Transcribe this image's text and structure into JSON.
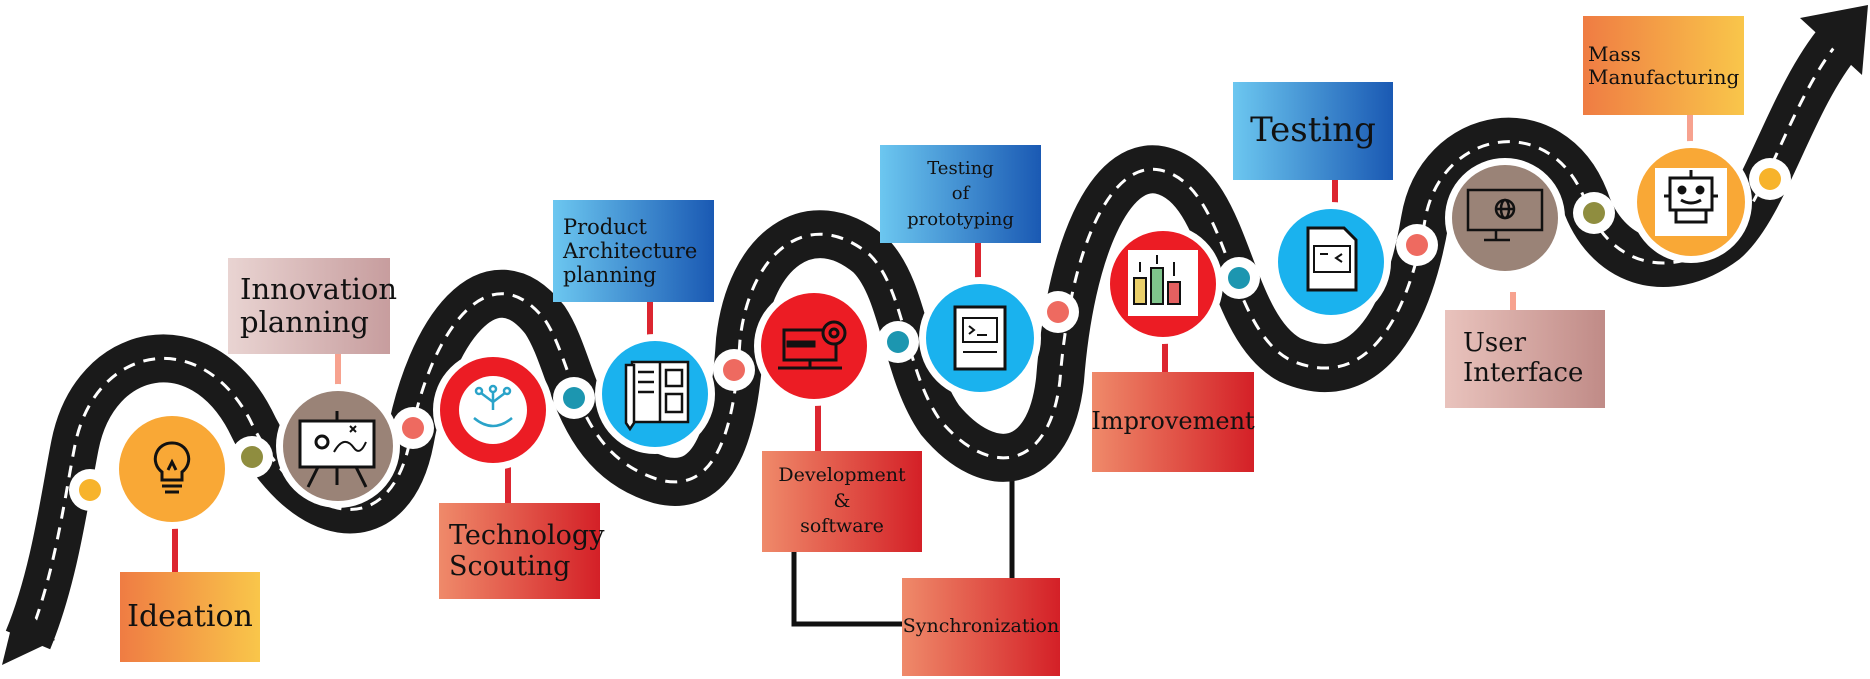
{
  "steps": [
    {
      "id": "ideation",
      "label": "Ideation",
      "icon": "lightbulb-icon",
      "circle_color": "#f9a836",
      "box_colors": [
        "#ef7c43",
        "#f9c64a"
      ]
    },
    {
      "id": "innovation",
      "label_lines": [
        "Innovation",
        "planning"
      ],
      "icon": "whiteboard-icon",
      "circle_color": "#9a8377",
      "box_colors": [
        "#e9d4d2",
        "#c79d9e"
      ]
    },
    {
      "id": "technology",
      "label_lines": [
        "Technology",
        "Scouting"
      ],
      "icon": "network-hand-icon",
      "circle_color": "#ec1c24",
      "box_colors": [
        "#ef8a6a",
        "#d42027"
      ]
    },
    {
      "id": "architecture",
      "label_lines": [
        "Product",
        "Architecture",
        "planning"
      ],
      "icon": "blueprint-icon",
      "circle_color": "#1ab2ee",
      "box_colors": [
        "#6cc7f0",
        "#1a59b3"
      ]
    },
    {
      "id": "development",
      "label_lines": [
        "Development",
        "&",
        "software"
      ],
      "icon": "computer-gear-icon",
      "circle_color": "#ec1c24",
      "box_colors": [
        "#ee8468",
        "#d4232b"
      ]
    },
    {
      "id": "synchronization",
      "label": "Synchronization",
      "box_colors": [
        "#ef8a6a",
        "#d42027"
      ]
    },
    {
      "id": "prototype-testing",
      "label_lines": [
        "Testing",
        "of",
        "prototyping"
      ],
      "icon": "code-document-icon",
      "circle_color": "#1ab2ee",
      "box_colors": [
        "#6cc7f0",
        "#1a59b3"
      ]
    },
    {
      "id": "improvement",
      "label": "Improvement",
      "icon": "bar-chart-icon",
      "circle_color": "#ec1c24",
      "box_colors": [
        "#ef8a6a",
        "#d42027"
      ]
    },
    {
      "id": "testing",
      "label": "Testing",
      "icon": "code-file-icon",
      "circle_color": "#1ab2ee",
      "box_colors": [
        "#6cc7f0",
        "#1a59b3"
      ]
    },
    {
      "id": "user-interface",
      "label_lines": [
        "User",
        "Interface"
      ],
      "icon": "monitor-globe-icon",
      "circle_color": "#9a8377",
      "box_colors": [
        "#e9c3bd",
        "#c08b87"
      ]
    },
    {
      "id": "manufacturing",
      "label_lines": [
        "Mass",
        "Manufacturing"
      ],
      "icon": "robot-icon",
      "circle_color": "#f9a836",
      "box_colors": [
        "#ef7c43",
        "#f9c64a"
      ]
    }
  ],
  "colors": {
    "road": "#1a1a1a",
    "connector_red": "#dc2630",
    "connector_pink": "#f7a28f",
    "dot_yellow": "#f7b32b",
    "dot_olive": "#8f8d3f",
    "dot_coral": "#ee6a60",
    "dot_teal": "#1c96b0"
  }
}
